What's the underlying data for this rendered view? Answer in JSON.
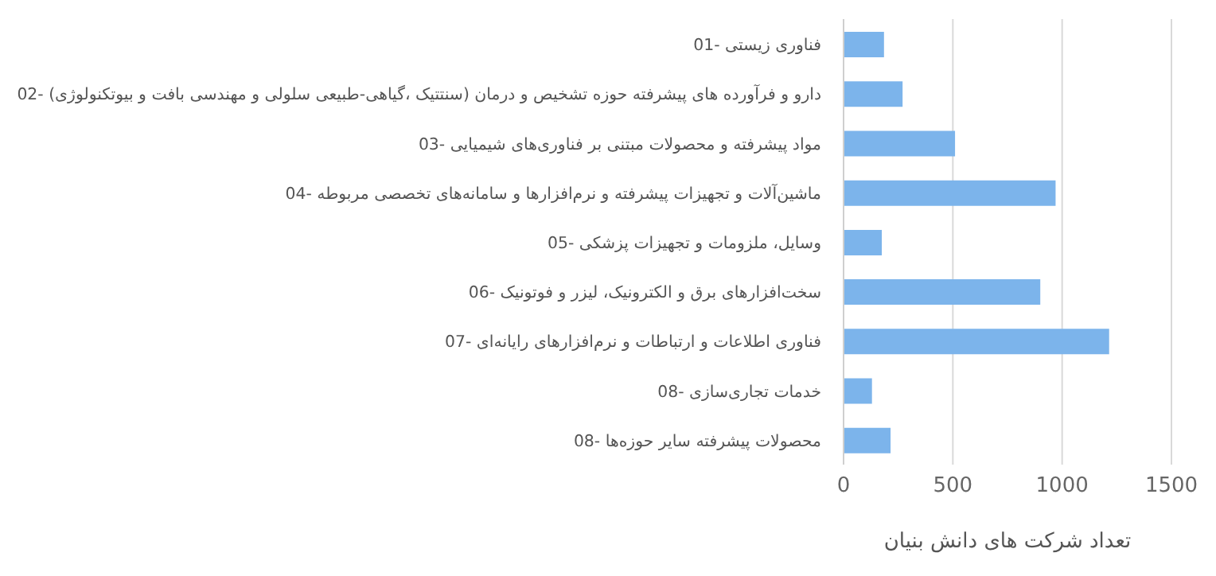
{
  "chart_data": {
    "type": "bar",
    "orientation": "horizontal",
    "xlabel": "تعداد شرکت های دانش بنیان",
    "categories": [
      "فناوری زیستی -01",
      "دارو و فرآورده های پیشرفته حوزه تشخیص و درمان (سنتتیک ،گیاهی-طبیعی سلولی و مهندسی بافت و بیوتکنولوژی) -02",
      "مواد پیشرفته و محصولات مبتنی بر فناوری‌های شیمیایی -03",
      "ماشین‌آلات و تجهیزات پیشرفته و نرم‌افزارها و سامانه‌های تخصصی مربوطه -04",
      "وسایل، ملزومات و تجهیزات پزشکی -05",
      "سخت‌افزارهای برق و الکترونیک، لیزر و فوتونیک -06",
      "فناوری اطلاعات و ارتباطات و نرم‌افزارهای رایانه‌ای -07",
      "خدمات تجاری‌سازی -08",
      "محصولات پیشرفته سایر حوزه‌ها -08"
    ],
    "values": [
      185,
      270,
      510,
      970,
      175,
      900,
      1215,
      130,
      215
    ],
    "color": "#7cb4eb",
    "xlim": [
      0,
      1500
    ],
    "xticks": [
      0,
      500,
      1000,
      1500
    ],
    "grid": "x",
    "legend": false
  }
}
